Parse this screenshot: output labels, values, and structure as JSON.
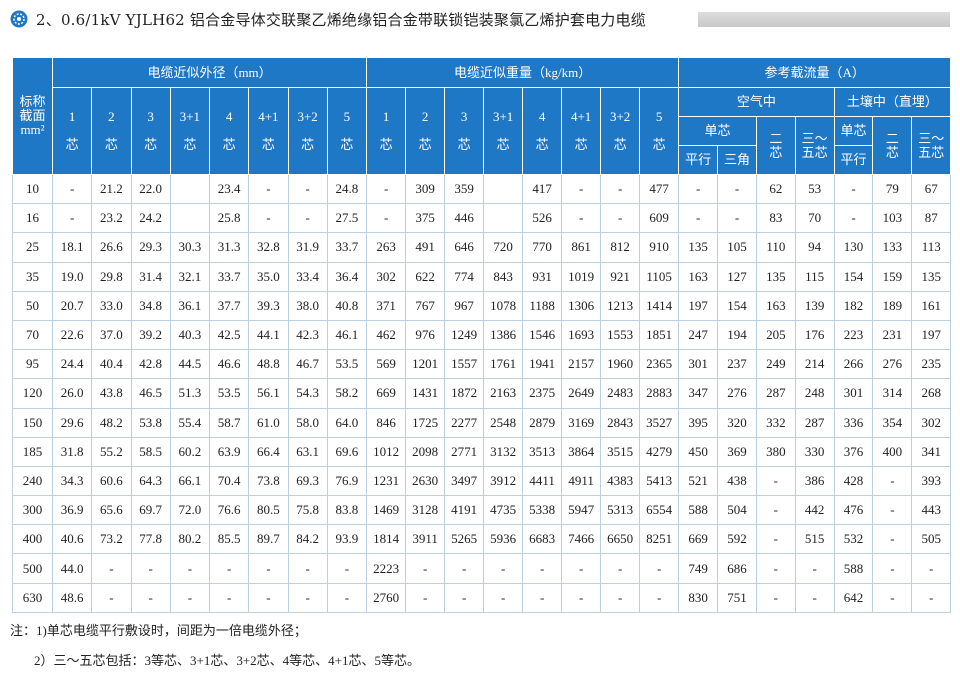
{
  "title": "2、0.6/1kV YJLH62 铝合金导体交联聚乙烯绝缘铝合金带联锁铠装聚氯乙烯护套电力电缆",
  "table": {
    "section_header": [
      "标称",
      "截面",
      "mm²"
    ],
    "groups": [
      "电缆近似外径（mm）",
      "电缆近似重量（kg/km）",
      "参考载流量（A）"
    ],
    "diameter_cores": [
      [
        "1",
        "芯"
      ],
      [
        "2",
        "芯"
      ],
      [
        "3",
        "芯"
      ],
      [
        "3+1",
        "芯"
      ],
      [
        "4",
        "芯"
      ],
      [
        "4+1",
        "芯"
      ],
      [
        "3+2",
        "芯"
      ],
      [
        "5",
        "芯"
      ]
    ],
    "weight_cores": [
      [
        "1",
        "芯"
      ],
      [
        "2",
        "芯"
      ],
      [
        "3",
        "芯"
      ],
      [
        "3+1",
        "芯"
      ],
      [
        "4",
        "芯"
      ],
      [
        "4+1",
        "芯"
      ],
      [
        "3+2",
        "芯"
      ],
      [
        "5",
        "芯"
      ]
    ],
    "air": "空气中",
    "soil": "土壤中（直埋）",
    "air_single": "单芯",
    "air_single_sub": [
      "平行",
      "三角"
    ],
    "air_two": [
      "二",
      "芯"
    ],
    "air_three_five": [
      "三～",
      "五芯"
    ],
    "soil_single": "单芯",
    "soil_single_sub": "平行",
    "soil_two": [
      "二",
      "芯"
    ],
    "soil_three_five": [
      "三～",
      "五芯"
    ],
    "rows": [
      [
        "10",
        "-",
        "21.2",
        "22.0",
        null,
        "23.4",
        "-",
        "-",
        "24.8",
        "-",
        "309",
        "359",
        null,
        "417",
        "-",
        "-",
        "477",
        "-",
        "-",
        "62",
        "53",
        "-",
        "79",
        "67"
      ],
      [
        "16",
        "-",
        "23.2",
        "24.2",
        null,
        "25.8",
        "-",
        "-",
        "27.5",
        "-",
        "375",
        "446",
        null,
        "526",
        "-",
        "-",
        "609",
        "-",
        "-",
        "83",
        "70",
        "-",
        "103",
        "87"
      ],
      [
        "25",
        "18.1",
        "26.6",
        "29.3",
        "30.3",
        "31.3",
        "32.8",
        "31.9",
        "33.7",
        "263",
        "491",
        "646",
        "720",
        "770",
        "861",
        "812",
        "910",
        "135",
        "105",
        "110",
        "94",
        "130",
        "133",
        "113"
      ],
      [
        "35",
        "19.0",
        "29.8",
        "31.4",
        "32.1",
        "33.7",
        "35.0",
        "33.4",
        "36.4",
        "302",
        "622",
        "774",
        "843",
        "931",
        "1019",
        "921",
        "1105",
        "163",
        "127",
        "135",
        "115",
        "154",
        "159",
        "135"
      ],
      [
        "50",
        "20.7",
        "33.0",
        "34.8",
        "36.1",
        "37.7",
        "39.3",
        "38.0",
        "40.8",
        "371",
        "767",
        "967",
        "1078",
        "1188",
        "1306",
        "1213",
        "1414",
        "197",
        "154",
        "163",
        "139",
        "182",
        "189",
        "161"
      ],
      [
        "70",
        "22.6",
        "37.0",
        "39.2",
        "40.3",
        "42.5",
        "44.1",
        "42.3",
        "46.1",
        "462",
        "976",
        "1249",
        "1386",
        "1546",
        "1693",
        "1553",
        "1851",
        "247",
        "194",
        "205",
        "176",
        "223",
        "231",
        "197"
      ],
      [
        "95",
        "24.4",
        "40.4",
        "42.8",
        "44.5",
        "46.6",
        "48.8",
        "46.7",
        "53.5",
        "569",
        "1201",
        "1557",
        "1761",
        "1941",
        "2157",
        "1960",
        "2365",
        "301",
        "237",
        "249",
        "214",
        "266",
        "276",
        "235"
      ],
      [
        "120",
        "26.0",
        "43.8",
        "46.5",
        "51.3",
        "53.5",
        "56.1",
        "54.3",
        "58.2",
        "669",
        "1431",
        "1872",
        "2163",
        "2375",
        "2649",
        "2483",
        "2883",
        "347",
        "276",
        "287",
        "248",
        "301",
        "314",
        "268"
      ],
      [
        "150",
        "29.6",
        "48.2",
        "53.8",
        "55.4",
        "58.7",
        "61.0",
        "58.0",
        "64.0",
        "846",
        "1725",
        "2277",
        "2548",
        "2879",
        "3169",
        "2843",
        "3527",
        "395",
        "320",
        "332",
        "287",
        "336",
        "354",
        "302"
      ],
      [
        "185",
        "31.8",
        "55.2",
        "58.5",
        "60.2",
        "63.9",
        "66.4",
        "63.1",
        "69.6",
        "1012",
        "2098",
        "2771",
        "3132",
        "3513",
        "3864",
        "3515",
        "4279",
        "450",
        "369",
        "380",
        "330",
        "376",
        "400",
        "341"
      ],
      [
        "240",
        "34.3",
        "60.6",
        "64.3",
        "66.1",
        "70.4",
        "73.8",
        "69.3",
        "76.9",
        "1231",
        "2630",
        "3497",
        "3912",
        "4411",
        "4911",
        "4383",
        "5413",
        "521",
        "438",
        "-",
        "386",
        "428",
        "-",
        "393"
      ],
      [
        "300",
        "36.9",
        "65.6",
        "69.7",
        "72.0",
        "76.6",
        "80.5",
        "75.8",
        "83.8",
        "1469",
        "3128",
        "4191",
        "4735",
        "5338",
        "5947",
        "5313",
        "6554",
        "588",
        "504",
        "-",
        "442",
        "476",
        "-",
        "443"
      ],
      [
        "400",
        "40.6",
        "73.2",
        "77.8",
        "80.2",
        "85.5",
        "89.7",
        "84.2",
        "93.9",
        "1814",
        "3911",
        "5265",
        "5936",
        "6683",
        "7466",
        "6650",
        "8251",
        "669",
        "592",
        "-",
        "515",
        "532",
        "-",
        "505"
      ],
      [
        "500",
        "44.0",
        "-",
        "-",
        "-",
        "-",
        "-",
        "-",
        "-",
        "2223",
        "-",
        "-",
        "-",
        "-",
        "-",
        "-",
        "-",
        "749",
        "686",
        "-",
        "-",
        "588",
        "-",
        "-"
      ],
      [
        "630",
        "48.6",
        "-",
        "-",
        "-",
        "-",
        "-",
        "-",
        "-",
        "2760",
        "-",
        "-",
        "-",
        "-",
        "-",
        "-",
        "-",
        "830",
        "751",
        "-",
        "-",
        "642",
        "-",
        "-"
      ]
    ]
  },
  "notes": [
    "注：1)单芯电缆平行敷设时，间距为一倍电缆外径；",
    "2）三～五芯包括：3等芯、3+1芯、3+2芯、4等芯、4+1芯、5等芯。"
  ]
}
